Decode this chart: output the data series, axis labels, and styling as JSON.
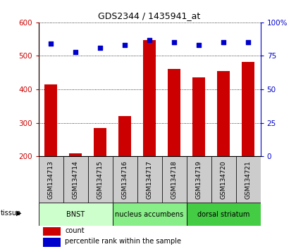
{
  "title": "GDS2344 / 1435941_at",
  "samples": [
    "GSM134713",
    "GSM134714",
    "GSM134715",
    "GSM134716",
    "GSM134717",
    "GSM134718",
    "GSM134719",
    "GSM134720",
    "GSM134721"
  ],
  "counts": [
    415,
    210,
    285,
    320,
    548,
    462,
    435,
    455,
    482
  ],
  "percentiles": [
    84,
    78,
    81,
    83,
    87,
    85,
    83,
    85,
    85
  ],
  "y_min": 200,
  "y_max": 600,
  "y_ticks": [
    200,
    300,
    400,
    500,
    600
  ],
  "y2_ticks": [
    0,
    25,
    50,
    75,
    100
  ],
  "bar_color": "#cc0000",
  "dot_color": "#0000cc",
  "bg_color": "#ffffff",
  "tissue_groups": [
    {
      "label": "BNST",
      "start": 0,
      "end": 3,
      "color": "#ccffcc"
    },
    {
      "label": "nucleus accumbens",
      "start": 3,
      "end": 6,
      "color": "#88ee88"
    },
    {
      "label": "dorsal striatum",
      "start": 6,
      "end": 9,
      "color": "#44cc44"
    }
  ],
  "bar_color_legend": "#cc0000",
  "dot_color_legend": "#0000cc",
  "bar_width": 0.5,
  "sample_bg": "#cccccc"
}
